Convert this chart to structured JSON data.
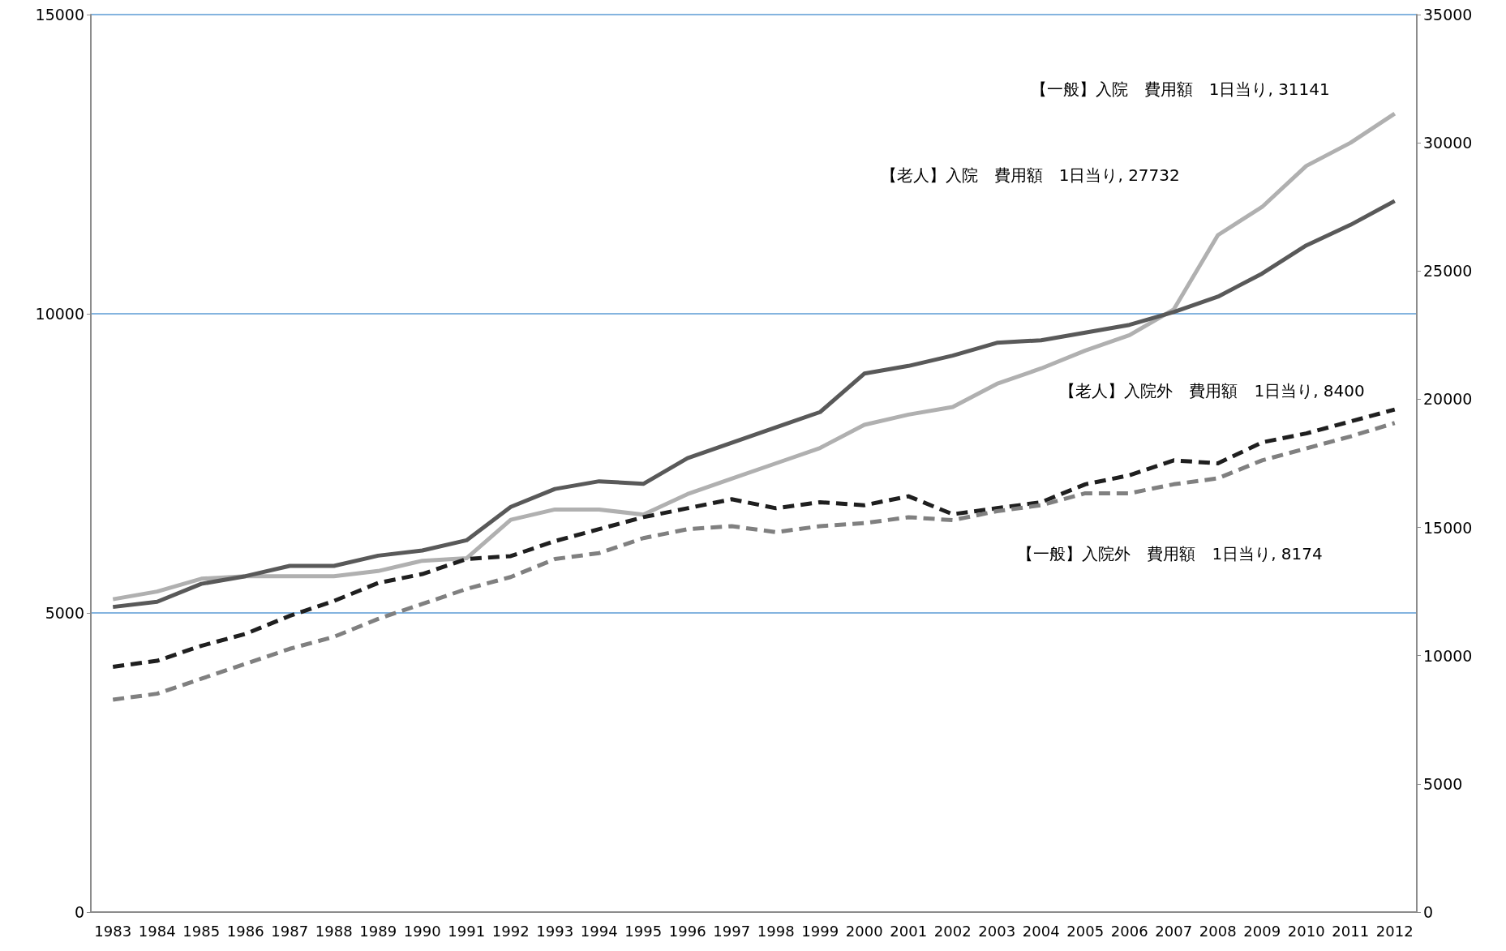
{
  "chart_data": {
    "type": "line",
    "categories": [
      "1983",
      "1984",
      "1985",
      "1986",
      "1987",
      "1988",
      "1989",
      "1990",
      "1991",
      "1992",
      "1993",
      "1994",
      "1995",
      "1996",
      "1997",
      "1998",
      "1999",
      "2000",
      "2001",
      "2002",
      "2003",
      "2004",
      "2005",
      "2006",
      "2007",
      "2008",
      "2009",
      "2010",
      "2011",
      "2012"
    ],
    "series": [
      {
        "name": "【一般】入院　費用額　1日当り",
        "color": "#b0b0b0",
        "axis": "y2",
        "line_style": "solid",
        "values": [
          12200,
          12500,
          13000,
          13100,
          13100,
          13100,
          13300,
          13700,
          13800,
          15300,
          15700,
          15700,
          15500,
          16300,
          16900,
          17500,
          18100,
          19000,
          19400,
          19700,
          20600,
          21200,
          21900,
          22500,
          23500,
          26400,
          27500,
          29100,
          30000,
          31141
        ],
        "value_labels": [
          null,
          null,
          null,
          null,
          null,
          null,
          null,
          null,
          null,
          null,
          null,
          null,
          null,
          null,
          null,
          null,
          null,
          null,
          null,
          null,
          null,
          null,
          null,
          null,
          null,
          null,
          null,
          null,
          null,
          ", 31141"
        ]
      },
      {
        "name": "【老人】入院　費用額　1日当り",
        "color": "#595959",
        "axis": "y2",
        "line_style": "solid",
        "values": [
          11900,
          12100,
          12800,
          13100,
          13500,
          13500,
          13900,
          14100,
          14500,
          15800,
          16500,
          16800,
          16700,
          17700,
          18300,
          18900,
          19500,
          21000,
          21300,
          21700,
          22200,
          22300,
          22600,
          22900,
          23400,
          24000,
          24900,
          26000,
          26800,
          27732
        ],
        "value_labels": [
          null,
          null,
          null,
          null,
          null,
          null,
          null,
          null,
          null,
          null,
          null,
          null,
          null,
          null,
          null,
          null,
          null,
          null,
          null,
          null,
          null,
          null,
          null,
          null,
          null,
          null,
          null,
          null,
          null,
          ", 27732"
        ]
      },
      {
        "name": "【老人】入院外　費用額　1日当り",
        "color": "#1f1f1f",
        "line_style": "dashed",
        "values": [
          4100,
          4200,
          4450,
          4650,
          4950,
          5200,
          5500,
          5650,
          5900,
          5950,
          6200,
          6400,
          6600,
          6750,
          6900,
          6750,
          6850,
          6800,
          6950,
          6650,
          6750,
          6850,
          7150,
          7300,
          7550,
          7500,
          7850,
          8000,
          8200,
          8400
        ],
        "value_labels": [
          null,
          null,
          null,
          null,
          null,
          null,
          null,
          null,
          null,
          null,
          null,
          null,
          null,
          null,
          null,
          null,
          null,
          null,
          null,
          null,
          null,
          null,
          null,
          null,
          null,
          null,
          null,
          null,
          null,
          ", 8400"
        ]
      },
      {
        "name": "【一般】入院外　費用額　1日当り",
        "color": "#808080",
        "line_style": "dashed",
        "values": [
          3550,
          3650,
          3900,
          4150,
          4400,
          4600,
          4900,
          5150,
          5400,
          5600,
          5900,
          6000,
          6250,
          6400,
          6450,
          6350,
          6450,
          6500,
          6600,
          6550,
          6700,
          6800,
          7000,
          7000,
          7150,
          7250,
          7550,
          7750,
          7950,
          8174
        ],
        "value_labels": [
          null,
          null,
          null,
          null,
          null,
          null,
          null,
          null,
          null,
          null,
          null,
          null,
          null,
          null,
          null,
          null,
          null,
          null,
          null,
          null,
          null,
          null,
          null,
          null,
          null,
          null,
          null,
          null,
          null,
          ", 8174"
        ]
      }
    ],
    "ylim": [
      0,
      15000
    ],
    "yticks": [
      0,
      5000,
      10000,
      15000
    ],
    "y2lim": [
      0,
      35000
    ],
    "y2ticks": [
      0,
      5000,
      10000,
      15000,
      20000,
      25000,
      30000,
      35000
    ],
    "grid": "y",
    "legend": false,
    "marker": "none"
  }
}
